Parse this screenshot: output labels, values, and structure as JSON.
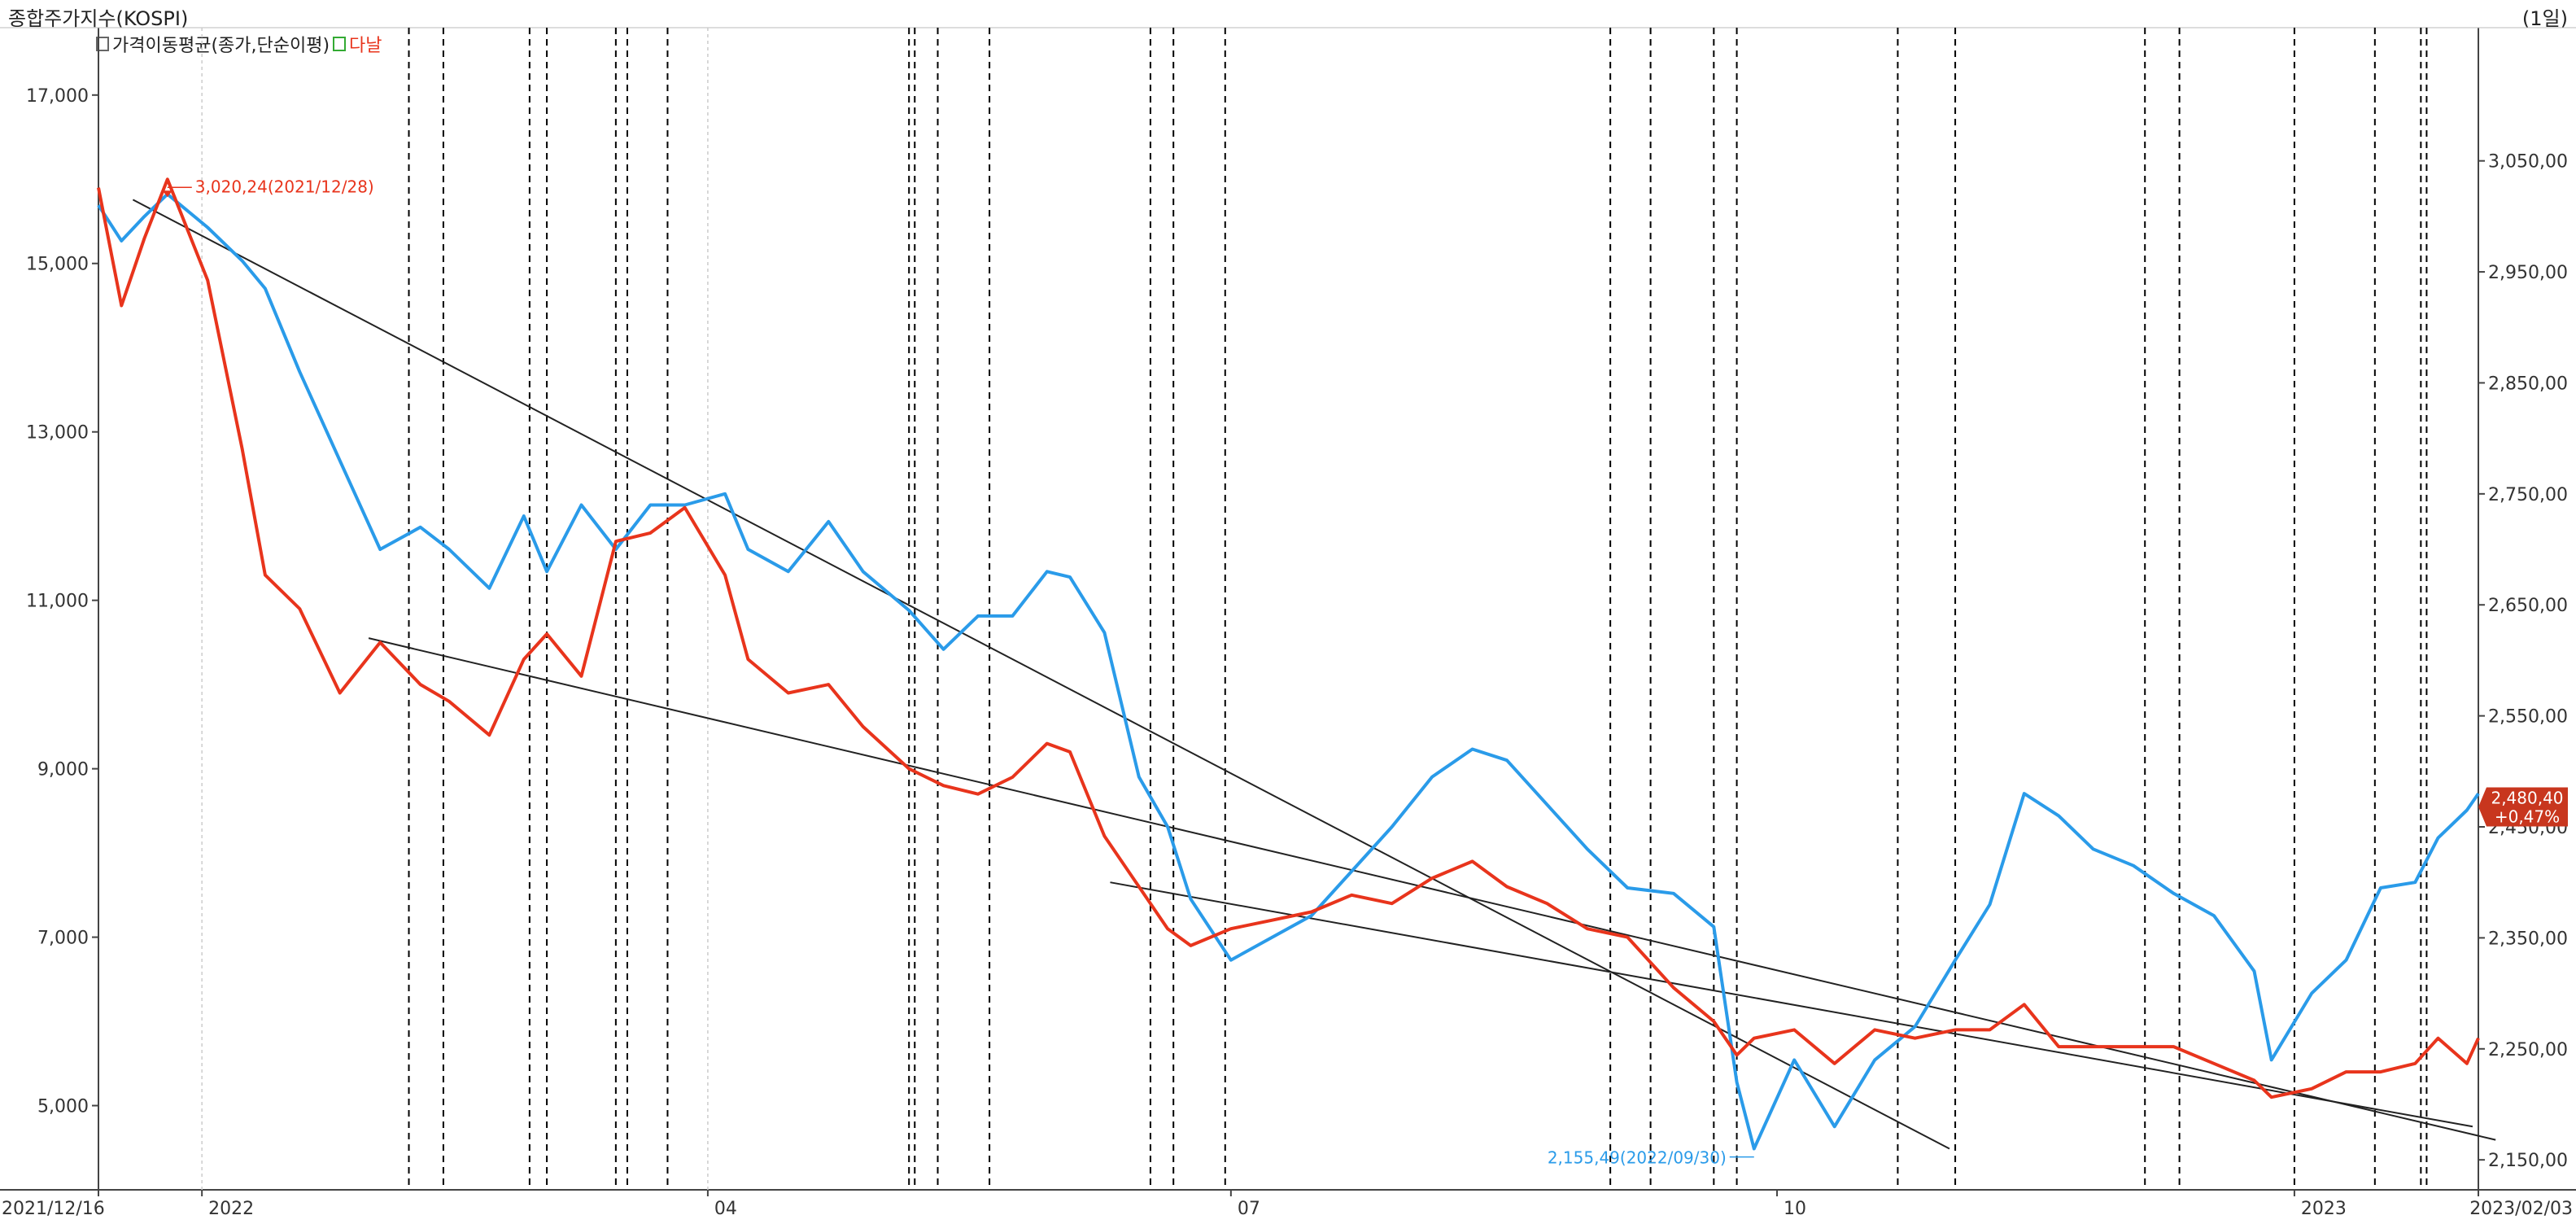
{
  "title": "종합주가지수(KOSPI)",
  "period": "(1일)",
  "legend": [
    {
      "label": "가격이동평균(종가,단순이평)",
      "color": "#2196e8"
    },
    {
      "label": "다날",
      "color": "#e8341c"
    }
  ],
  "colors": {
    "kospi": "#2a9be9",
    "danal": "#e8341c",
    "trend": "#222222",
    "grid": "#000000"
  },
  "chart_data": {
    "type": "line",
    "x_start": "2021/12/16",
    "x_end": "2023/02/03",
    "x_tick_labels": [
      "2021/12/16",
      "2022",
      "04",
      "07",
      "10",
      "2023",
      "2023/02/03"
    ],
    "left_axis": {
      "ticks": [
        5000,
        7000,
        9000,
        11000,
        13000,
        15000,
        17000
      ],
      "labels": [
        "5,000",
        "7,000",
        "9,000",
        "11,000",
        "13,000",
        "15,000",
        "17,000"
      ],
      "ylim": [
        4000,
        17800
      ]
    },
    "right_axis": {
      "ticks": [
        2150,
        2250,
        2350,
        2450,
        2550,
        2650,
        2750,
        2850,
        2950,
        3050
      ],
      "labels": [
        "2,150,00",
        "2,250,00",
        "2,350,00",
        "2,450,00",
        "2,550,00",
        "2,650,00",
        "2,750,00",
        "2,850,00",
        "2,950,00",
        "3,050,00"
      ],
      "ylim": [
        2123,
        3170
      ]
    },
    "series": [
      {
        "name": "KOSPI",
        "axis": "right",
        "color": "#2a9be9",
        "dates": [
          "2021-12-16",
          "2021-12-20",
          "2021-12-24",
          "2021-12-28",
          "2022-01-04",
          "2022-01-10",
          "2022-01-14",
          "2022-01-20",
          "2022-01-27",
          "2022-02-03",
          "2022-02-10",
          "2022-02-15",
          "2022-02-22",
          "2022-02-28",
          "2022-03-04",
          "2022-03-10",
          "2022-03-16",
          "2022-03-22",
          "2022-03-28",
          "2022-04-04",
          "2022-04-08",
          "2022-04-15",
          "2022-04-22",
          "2022-04-28",
          "2022-05-06",
          "2022-05-12",
          "2022-05-18",
          "2022-05-24",
          "2022-05-30",
          "2022-06-03",
          "2022-06-09",
          "2022-06-15",
          "2022-06-20",
          "2022-06-24",
          "2022-07-01",
          "2022-07-08",
          "2022-07-15",
          "2022-07-22",
          "2022-07-29",
          "2022-08-05",
          "2022-08-12",
          "2022-08-18",
          "2022-08-25",
          "2022-09-01",
          "2022-09-08",
          "2022-09-16",
          "2022-09-23",
          "2022-09-27",
          "2022-09-30",
          "2022-10-07",
          "2022-10-14",
          "2022-10-21",
          "2022-10-28",
          "2022-11-04",
          "2022-11-10",
          "2022-11-16",
          "2022-11-22",
          "2022-11-28",
          "2022-12-05",
          "2022-12-12",
          "2022-12-19",
          "2022-12-26",
          "2022-12-29",
          "2023-01-05",
          "2023-01-11",
          "2023-01-17",
          "2023-01-23",
          "2023-01-27",
          "2023-02-01",
          "2023-02-03"
        ],
        "values": [
          3010,
          2978,
          3000,
          3020,
          2990,
          2960,
          2935,
          2860,
          2780,
          2700,
          2720,
          2700,
          2665,
          2730,
          2680,
          2740,
          2700,
          2740,
          2740,
          2750,
          2700,
          2680,
          2725,
          2680,
          2645,
          2610,
          2640,
          2640,
          2680,
          2675,
          2625,
          2495,
          2450,
          2385,
          2330,
          2350,
          2370,
          2410,
          2450,
          2495,
          2520,
          2510,
          2470,
          2430,
          2395,
          2390,
          2360,
          2220,
          2160,
          2240,
          2180,
          2240,
          2270,
          2330,
          2380,
          2480,
          2460,
          2430,
          2415,
          2390,
          2370,
          2320,
          2240,
          2300,
          2330,
          2395,
          2400,
          2440,
          2465,
          2480
        ]
      },
      {
        "name": "다날",
        "axis": "left",
        "color": "#e8341c",
        "dates": [
          "2021-12-16",
          "2021-12-20",
          "2021-12-24",
          "2021-12-28",
          "2022-01-04",
          "2022-01-10",
          "2022-01-14",
          "2022-01-20",
          "2022-01-27",
          "2022-02-03",
          "2022-02-10",
          "2022-02-15",
          "2022-02-22",
          "2022-02-28",
          "2022-03-04",
          "2022-03-10",
          "2022-03-16",
          "2022-03-22",
          "2022-03-28",
          "2022-04-04",
          "2022-04-08",
          "2022-04-15",
          "2022-04-22",
          "2022-04-28",
          "2022-05-06",
          "2022-05-12",
          "2022-05-18",
          "2022-05-24",
          "2022-05-30",
          "2022-06-03",
          "2022-06-09",
          "2022-06-15",
          "2022-06-20",
          "2022-06-24",
          "2022-07-01",
          "2022-07-08",
          "2022-07-15",
          "2022-07-22",
          "2022-07-29",
          "2022-08-05",
          "2022-08-12",
          "2022-08-18",
          "2022-08-25",
          "2022-09-01",
          "2022-09-08",
          "2022-09-16",
          "2022-09-23",
          "2022-09-27",
          "2022-09-30",
          "2022-10-07",
          "2022-10-14",
          "2022-10-21",
          "2022-10-28",
          "2022-11-04",
          "2022-11-10",
          "2022-11-16",
          "2022-11-22",
          "2022-11-28",
          "2022-12-05",
          "2022-12-12",
          "2022-12-19",
          "2022-12-26",
          "2022-12-29",
          "2023-01-05",
          "2023-01-11",
          "2023-01-17",
          "2023-01-23",
          "2023-01-27",
          "2023-02-01",
          "2023-02-03"
        ],
        "values": [
          15900,
          14500,
          15300,
          16000,
          14800,
          12800,
          11300,
          10900,
          9900,
          10500,
          10000,
          9800,
          9400,
          10300,
          10600,
          10100,
          11700,
          11800,
          12100,
          11300,
          10300,
          9900,
          10000,
          9500,
          9000,
          8800,
          8700,
          8900,
          9300,
          9200,
          8200,
          7600,
          7100,
          6900,
          7100,
          7200,
          7300,
          7500,
          7400,
          7700,
          7900,
          7600,
          7400,
          7100,
          7000,
          6400,
          6000,
          5600,
          5800,
          5900,
          5500,
          5900,
          5800,
          5900,
          5900,
          6200,
          5700,
          5700,
          5700,
          5700,
          5500,
          5300,
          5100,
          5200,
          5400,
          5400,
          5500,
          5800,
          5500,
          5800
        ]
      }
    ],
    "annotations": [
      {
        "label": "3,020,24(2021/12/28)",
        "x": "2021-12-28",
        "y": 3020.24,
        "axis": "right",
        "color": "#e8341c"
      },
      {
        "label": "2,155,49(2022/09/30)",
        "x": "2022-09-30",
        "y": 2155.49,
        "axis": "right",
        "color": "#2a9be9"
      }
    ],
    "last_value": {
      "value": "2,480,40",
      "change": "+0,47%"
    },
    "event_dates": [
      "2022-02-08",
      "2022-02-14",
      "2022-03-01",
      "2022-03-04",
      "2022-03-16",
      "2022-03-18",
      "2022-03-25",
      "2022-05-06",
      "2022-05-07",
      "2022-05-11",
      "2022-05-20",
      "2022-06-17",
      "2022-06-21",
      "2022-06-30",
      "2022-09-05",
      "2022-09-12",
      "2022-09-23",
      "2022-09-27",
      "2022-10-25",
      "2022-11-04",
      "2022-12-07",
      "2022-12-13",
      "2023-01-02",
      "2023-01-16",
      "2023-01-24",
      "2023-01-25"
    ]
  }
}
